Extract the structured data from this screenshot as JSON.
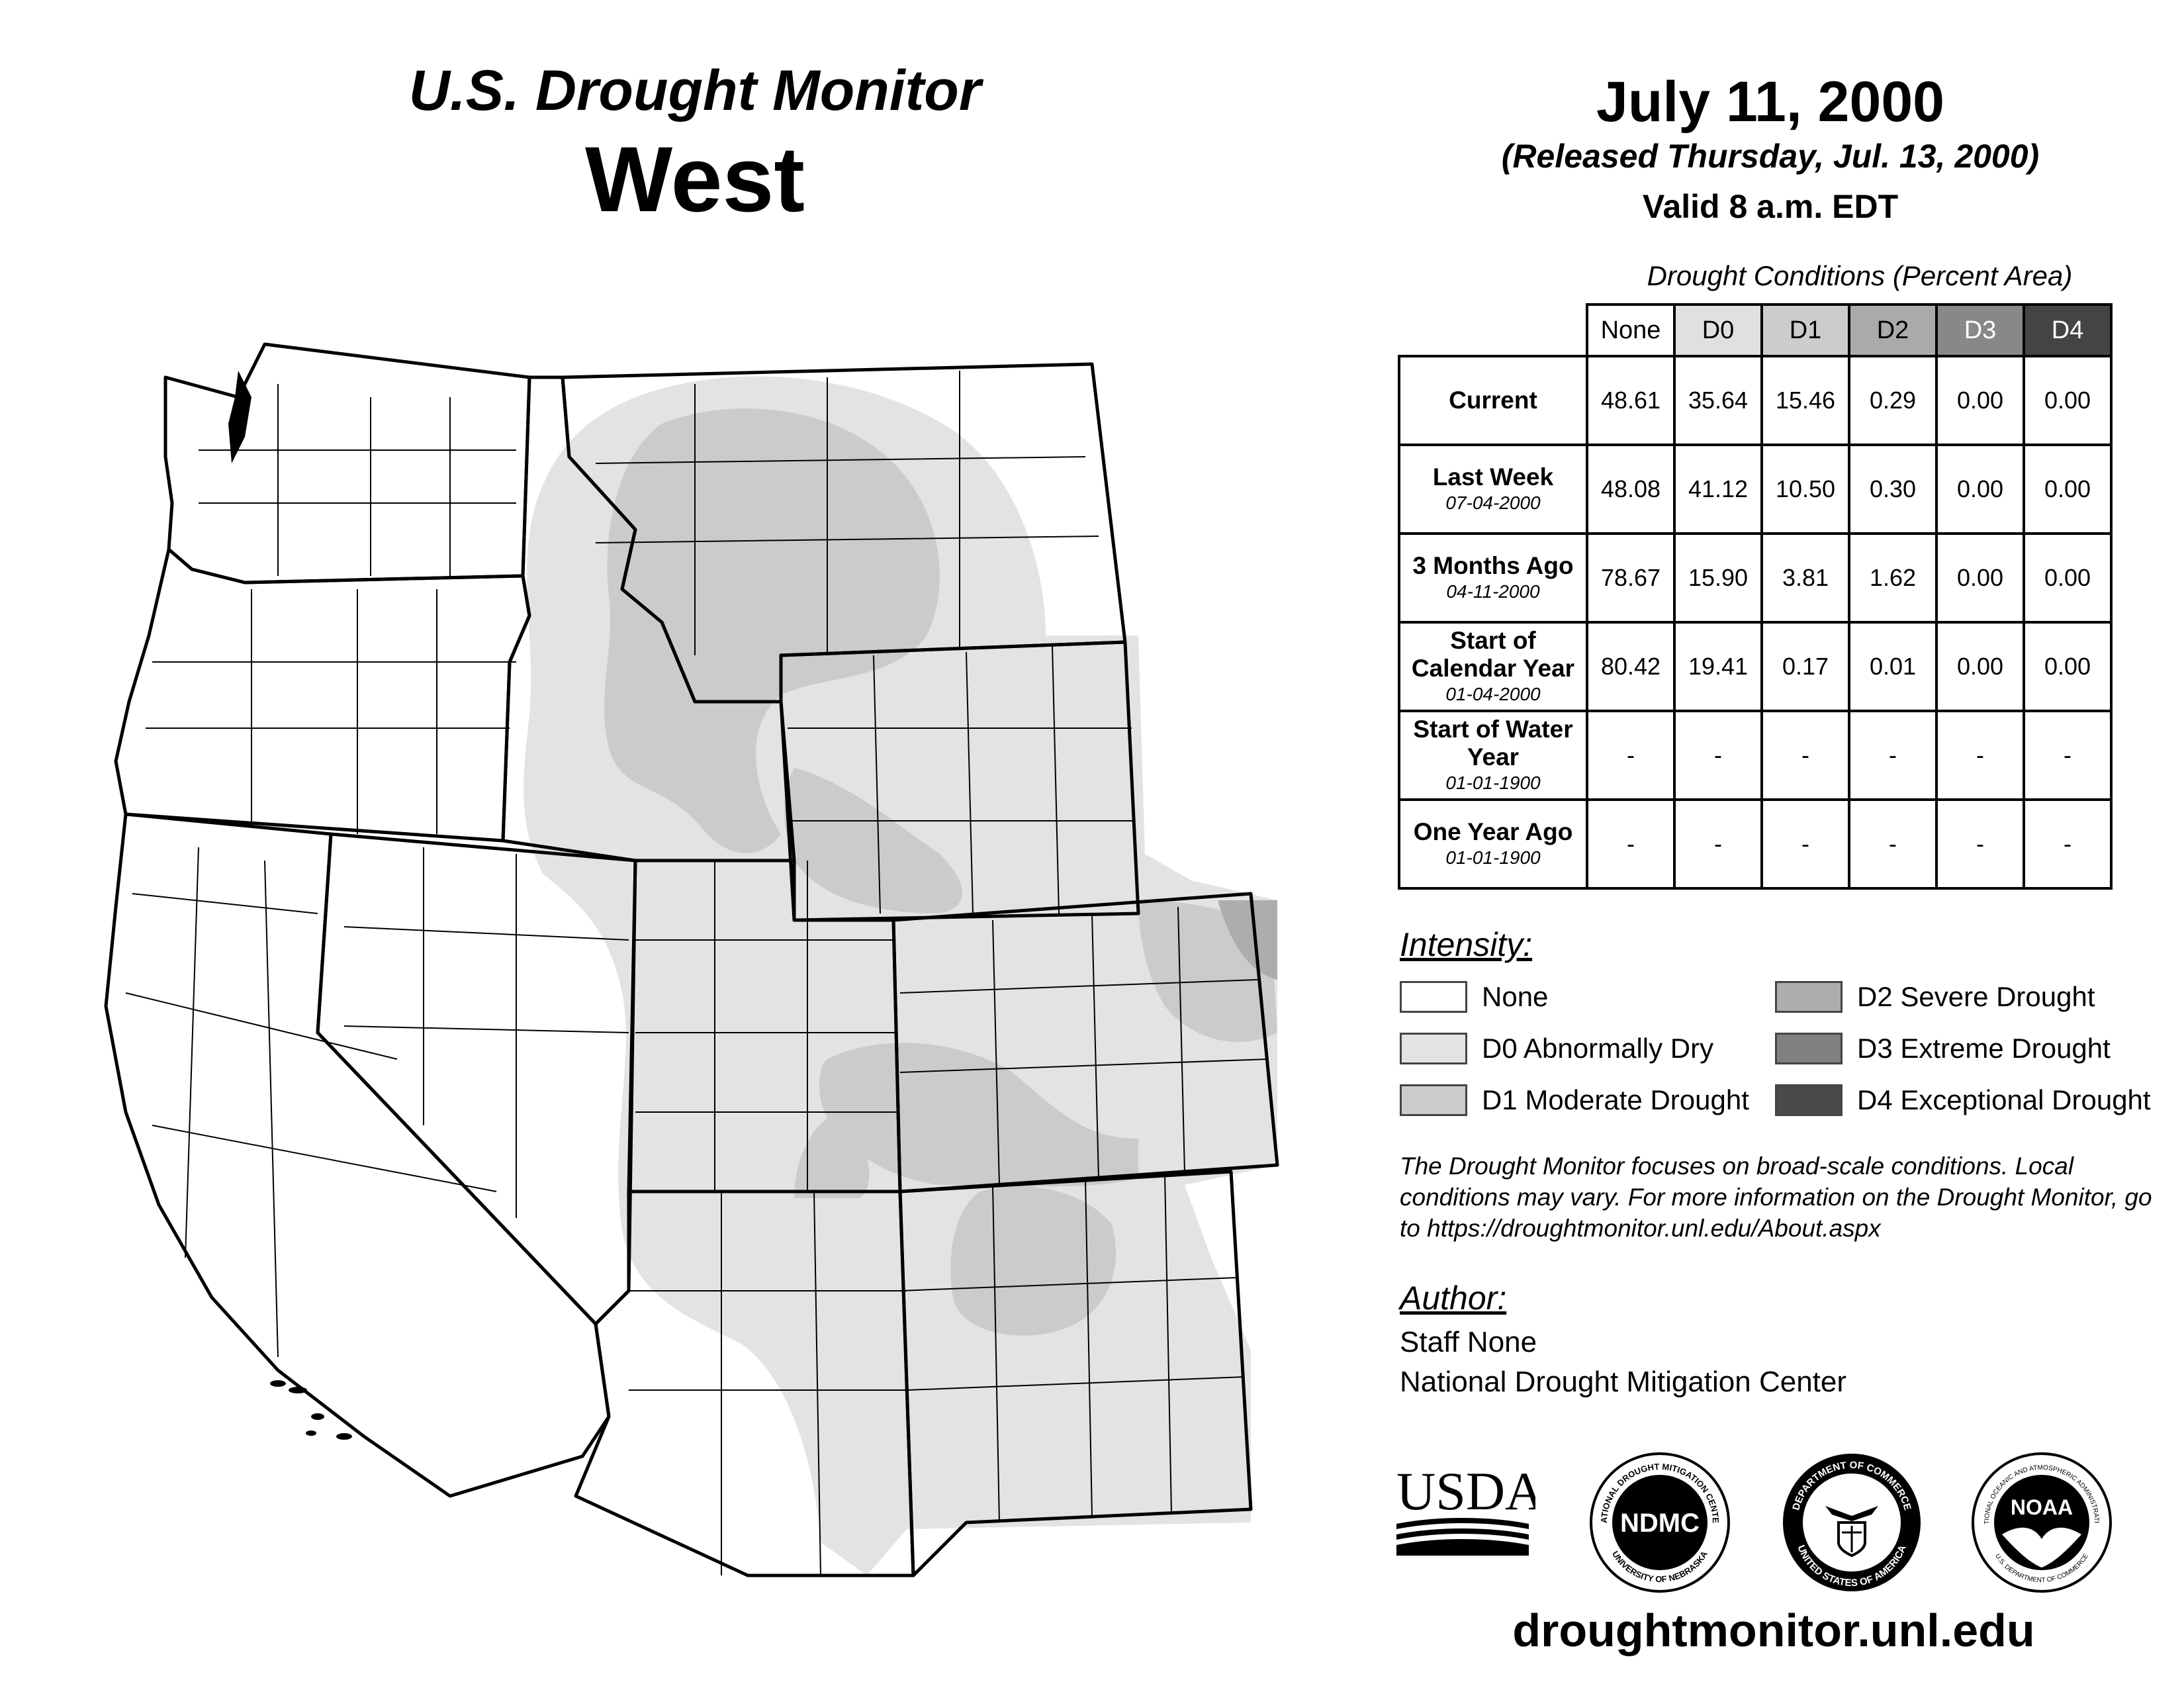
{
  "header": {
    "title": "U.S. Drought Monitor",
    "region": "West",
    "date": "July 11, 2000",
    "released": "(Released Thursday, Jul. 13, 2000)",
    "valid": "Valid 8 a.m. EDT"
  },
  "table": {
    "caption": "Drought Conditions (Percent Area)",
    "columns": [
      "None",
      "D0",
      "D1",
      "D2",
      "D3",
      "D4"
    ],
    "column_colors": [
      "#ffffff",
      "#e0e0e0",
      "#cccccc",
      "#aaaaaa",
      "#888888",
      "#444444"
    ],
    "rows": [
      {
        "label": "Current",
        "date": "",
        "values": [
          "48.61",
          "35.64",
          "15.46",
          "0.29",
          "0.00",
          "0.00"
        ]
      },
      {
        "label": "Last Week",
        "date": "07-04-2000",
        "values": [
          "48.08",
          "41.12",
          "10.50",
          "0.30",
          "0.00",
          "0.00"
        ]
      },
      {
        "label": "3 Months Ago",
        "date": "04-11-2000",
        "values": [
          "78.67",
          "15.90",
          "3.81",
          "1.62",
          "0.00",
          "0.00"
        ]
      },
      {
        "label": "Start of Calendar Year",
        "date": "01-04-2000",
        "values": [
          "80.42",
          "19.41",
          "0.17",
          "0.01",
          "0.00",
          "0.00"
        ]
      },
      {
        "label": "Start of Water Year",
        "date": "01-01-1900",
        "values": [
          "-",
          "-",
          "-",
          "-",
          "-",
          "-"
        ]
      },
      {
        "label": "One Year Ago",
        "date": "01-01-1900",
        "values": [
          "-",
          "-",
          "-",
          "-",
          "-",
          "-"
        ]
      }
    ]
  },
  "legend": {
    "title": "Intensity:",
    "items": [
      {
        "label": "None",
        "color": "#ffffff"
      },
      {
        "label": "D0 Abnormally Dry",
        "color": "#e3e3e3"
      },
      {
        "label": "D1 Moderate Drought",
        "color": "#cbcbcb"
      },
      {
        "label": "D2 Severe Drought",
        "color": "#adadad"
      },
      {
        "label": "D3 Extreme Drought",
        "color": "#808080"
      },
      {
        "label": "D4 Exceptional Drought",
        "color": "#4a4a4a"
      }
    ]
  },
  "note": "The Drought Monitor focuses on broad-scale conditions. Local conditions may vary. For more information on the Drought Monitor, go to https://droughtmonitor.unl.edu/About.aspx",
  "author": {
    "label": "Author:",
    "name": "Staff None",
    "organization": "National Drought Mitigation Center"
  },
  "logos": {
    "usda": "USDA",
    "ndmc_text": "NDMC",
    "ndmc_ring_top": "NATIONAL DROUGHT MITIGATION CENTER",
    "ndmc_ring_bottom": "UNIVERSITY OF NEBRASKA",
    "doc_ring_top": "DEPARTMENT OF COMMERCE",
    "doc_ring_bottom": "UNITED STATES OF AMERICA",
    "noaa_text": "NOAA",
    "noaa_ring_top": "NATIONAL OCEANIC AND ATMOSPHERIC ADMINISTRATION",
    "noaa_ring_bottom": "U.S. DEPARTMENT OF COMMERCE"
  },
  "footer_url": "droughtmonitor.unl.edu",
  "map": {
    "drought_fill_d0": "#e3e3e3",
    "drought_fill_d1": "#cbcbcb",
    "drought_fill_d2": "#adadad",
    "state_border": "#000000"
  }
}
